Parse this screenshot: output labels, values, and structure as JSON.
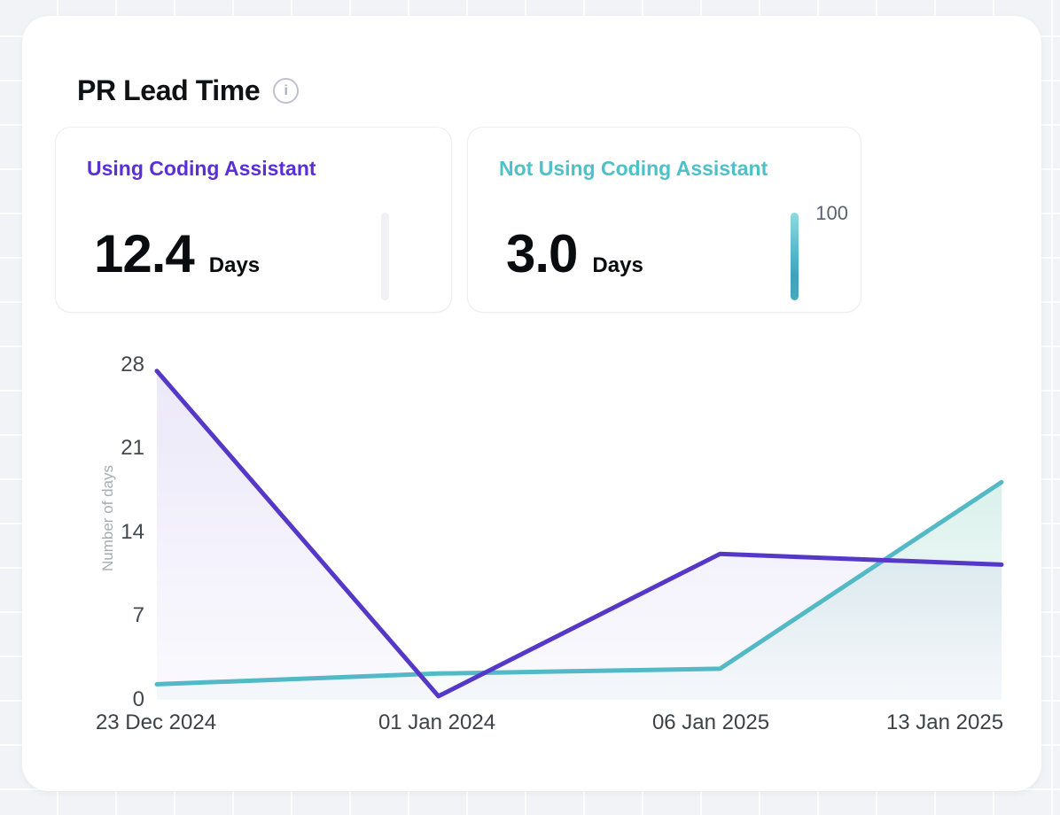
{
  "header": {
    "title": "PR Lead Time"
  },
  "stat_cards": [
    {
      "label": "Using Coding Assistant",
      "value": "12.4",
      "unit": "Days",
      "accent_color": "#5B2FD6",
      "bar_state": "empty",
      "bar_color": "#F0F0F5"
    },
    {
      "label": "Not Using Coding Assistant",
      "value": "3.0",
      "unit": "Days",
      "accent_color": "#4EC0C7",
      "bar_state": "filled",
      "bar_colors": [
        "#8EDAE0",
        "#3FA2BD"
      ],
      "bar_top_label": "100"
    }
  ],
  "chart_data": {
    "type": "area",
    "title": "PR Lead Time",
    "xlabel": "",
    "ylabel": "Number of days",
    "x_labels": [
      "23 Dec 2024",
      "01 Jan 2024",
      "06 Jan 2025",
      "13 Jan 2025"
    ],
    "y_ticks": [
      0,
      7,
      14,
      21,
      28
    ],
    "ylim": [
      0,
      28
    ],
    "grid": false,
    "legend_position": "none",
    "series": [
      {
        "name": "Using Coding Assistant",
        "color": "#5638C8",
        "fill": "#6A4FD4",
        "fill_opacity": [
          0.13,
          0.03
        ],
        "values": [
          27.5,
          0.3,
          12.2,
          11.3
        ]
      },
      {
        "name": "Not Using Coding Assistant",
        "color": "#54B9C6",
        "fill": "#4AB89E",
        "fill_opacity": [
          0.2,
          0.03
        ],
        "values": [
          1.3,
          2.2,
          2.6,
          18.2
        ]
      }
    ]
  }
}
